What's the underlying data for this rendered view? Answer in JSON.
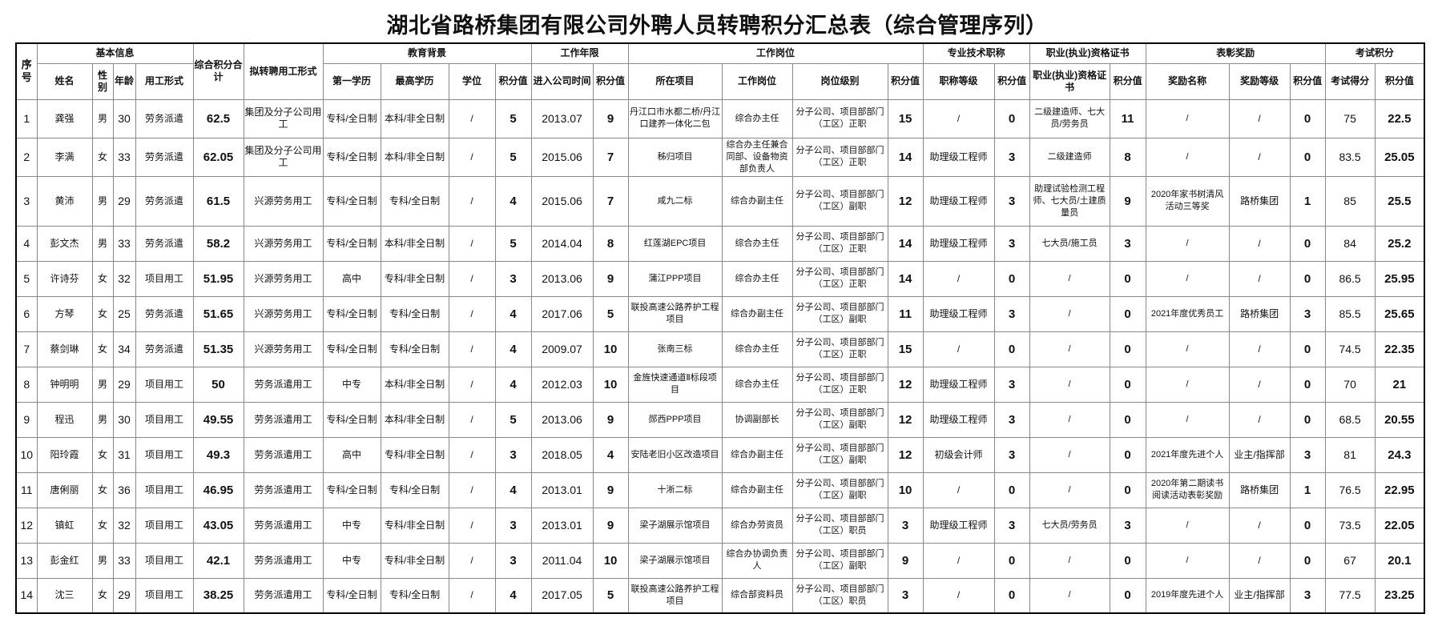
{
  "title": "湖北省路桥集团有限公司外聘人员转聘积分汇总表（综合管理序列）",
  "group_headers": {
    "seq": "序号",
    "basic": "基本信息",
    "total": "综合积分合计",
    "transfer": "拟转聘用工形式",
    "education": "教育背景",
    "years": "工作年限",
    "position": "工作岗位",
    "title_rank": "专业技术职称",
    "certificate": "职业(执业)资格证书",
    "awards": "表彰奖励",
    "exam": "考试积分"
  },
  "sub_headers": [
    "姓名",
    "性别",
    "年龄",
    "用工形式",
    "第一学历",
    "最高学历",
    "学位",
    "积分值",
    "进入公司时间",
    "积分值",
    "所在项目",
    "工作岗位",
    "岗位级别",
    "积分值",
    "职称等级",
    "积分值",
    "职业(执业)资格证书",
    "积分值",
    "奖励名称",
    "奖励等级",
    "积分值",
    "考试得分",
    "积分值"
  ],
  "rows": [
    [
      "1",
      "龚强",
      "男",
      "30",
      "劳务派遣",
      "62.5",
      "集团及分子公司用工",
      "专科/全日制",
      "本科/非全日制",
      "/",
      "5",
      "2013.07",
      "9",
      "丹江口市水都二桥/丹江口建养一体化二包",
      "综合办主任",
      "分子公司、项目部部门（工区）正职",
      "15",
      "/",
      "0",
      "二级建造师、七大员/劳务员",
      "11",
      "/",
      "/",
      "0",
      "75",
      "22.5"
    ],
    [
      "2",
      "李满",
      "女",
      "33",
      "劳务派遣",
      "62.05",
      "集团及分子公司用工",
      "专科/全日制",
      "本科/非全日制",
      "/",
      "5",
      "2015.06",
      "7",
      "秭归项目",
      "综合办主任兼合同部、设备物资部负责人",
      "分子公司、项目部部门（工区）正职",
      "14",
      "助理级工程师",
      "3",
      "二级建造师",
      "8",
      "/",
      "/",
      "0",
      "83.5",
      "25.05"
    ],
    [
      "3",
      "黄沛",
      "男",
      "29",
      "劳务派遣",
      "61.5",
      "兴源劳务用工",
      "专科/全日制",
      "专科/全日制",
      "/",
      "4",
      "2015.06",
      "7",
      "咸九二标",
      "综合办副主任",
      "分子公司、项目部部门（工区）副职",
      "12",
      "助理级工程师",
      "3",
      "助理试验检测工程师、七大员/土建质量员",
      "9",
      "2020年家书树清风活动三等奖",
      "路桥集团",
      "1",
      "85",
      "25.5"
    ],
    [
      "4",
      "彭文杰",
      "男",
      "33",
      "劳务派遣",
      "58.2",
      "兴源劳务用工",
      "专科/全日制",
      "本科/非全日制",
      "/",
      "5",
      "2014.04",
      "8",
      "红莲湖EPC项目",
      "综合办主任",
      "分子公司、项目部部门（工区）正职",
      "14",
      "助理级工程师",
      "3",
      "七大员/施工员",
      "3",
      "/",
      "/",
      "0",
      "84",
      "25.2"
    ],
    [
      "5",
      "许诗芬",
      "女",
      "32",
      "项目用工",
      "51.95",
      "兴源劳务用工",
      "高中",
      "专科/非全日制",
      "/",
      "3",
      "2013.06",
      "9",
      "蒲江PPP项目",
      "综合办主任",
      "分子公司、项目部部门（工区）正职",
      "14",
      "/",
      "0",
      "/",
      "0",
      "/",
      "/",
      "0",
      "86.5",
      "25.95"
    ],
    [
      "6",
      "方琴",
      "女",
      "25",
      "劳务派遣",
      "51.65",
      "兴源劳务用工",
      "专科/全日制",
      "专科/全日制",
      "/",
      "4",
      "2017.06",
      "5",
      "联投高速公路养护工程项目",
      "综合办副主任",
      "分子公司、项目部部门（工区）副职",
      "11",
      "助理级工程师",
      "3",
      "/",
      "0",
      "2021年度优秀员工",
      "路桥集团",
      "3",
      "85.5",
      "25.65"
    ],
    [
      "7",
      "蔡剑琳",
      "女",
      "34",
      "劳务派遣",
      "51.35",
      "兴源劳务用工",
      "专科/全日制",
      "专科/全日制",
      "/",
      "4",
      "2009.07",
      "10",
      "张南三标",
      "综合办主任",
      "分子公司、项目部部门（工区）正职",
      "15",
      "/",
      "0",
      "/",
      "0",
      "/",
      "/",
      "0",
      "74.5",
      "22.35"
    ],
    [
      "8",
      "钟明明",
      "男",
      "29",
      "项目用工",
      "50",
      "劳务派遣用工",
      "中专",
      "本科/非全日制",
      "/",
      "4",
      "2012.03",
      "10",
      "金旌快速通道Ⅱ标段项目",
      "综合办主任",
      "分子公司、项目部部门（工区）正职",
      "12",
      "助理级工程师",
      "3",
      "/",
      "0",
      "/",
      "/",
      "0",
      "70",
      "21"
    ],
    [
      "9",
      "程迅",
      "男",
      "30",
      "项目用工",
      "49.55",
      "劳务派遣用工",
      "专科/全日制",
      "本科/非全日制",
      "/",
      "5",
      "2013.06",
      "9",
      "郧西PPP项目",
      "协调副部长",
      "分子公司、项目部部门（工区）副职",
      "12",
      "助理级工程师",
      "3",
      "/",
      "0",
      "/",
      "/",
      "0",
      "68.5",
      "20.55"
    ],
    [
      "10",
      "阳玲霞",
      "女",
      "31",
      "项目用工",
      "49.3",
      "劳务派遣用工",
      "高中",
      "专科/非全日制",
      "/",
      "3",
      "2018.05",
      "4",
      "安陆老旧小区改造项目",
      "综合办副主任",
      "分子公司、项目部部门（工区）副职",
      "12",
      "初级会计师",
      "3",
      "/",
      "0",
      "2021年度先进个人",
      "业主/指挥部",
      "3",
      "81",
      "24.3"
    ],
    [
      "11",
      "唐俐丽",
      "女",
      "36",
      "项目用工",
      "46.95",
      "劳务派遣用工",
      "专科/全日制",
      "专科/全日制",
      "/",
      "4",
      "2013.01",
      "9",
      "十淅二标",
      "综合办副主任",
      "分子公司、项目部部门（工区）副职",
      "10",
      "/",
      "0",
      "/",
      "0",
      "2020年第二期读书阅读活动表彰奖励",
      "路桥集团",
      "1",
      "76.5",
      "22.95"
    ],
    [
      "12",
      "镇虹",
      "女",
      "32",
      "项目用工",
      "43.05",
      "劳务派遣用工",
      "中专",
      "专科/非全日制",
      "/",
      "3",
      "2013.01",
      "9",
      "梁子湖展示馆项目",
      "综合办劳资员",
      "分子公司、项目部部门（工区）职员",
      "3",
      "助理级工程师",
      "3",
      "七大员/劳务员",
      "3",
      "/",
      "/",
      "0",
      "73.5",
      "22.05"
    ],
    [
      "13",
      "彭金红",
      "男",
      "33",
      "项目用工",
      "42.1",
      "劳务派遣用工",
      "中专",
      "专科/非全日制",
      "/",
      "3",
      "2011.04",
      "10",
      "梁子湖展示馆项目",
      "综合办协调负责人",
      "分子公司、项目部部门（工区）副职",
      "9",
      "/",
      "0",
      "/",
      "0",
      "/",
      "/",
      "0",
      "67",
      "20.1"
    ],
    [
      "14",
      "沈三",
      "女",
      "29",
      "项目用工",
      "38.25",
      "劳务派遣用工",
      "专科/全日制",
      "专科/全日制",
      "/",
      "4",
      "2017.05",
      "5",
      "联投高速公路养护工程项目",
      "综合部资料员",
      "分子公司、项目部部门（工区）职员",
      "3",
      "/",
      "0",
      "/",
      "0",
      "2019年度先进个人",
      "业主/指挥部",
      "3",
      "77.5",
      "23.25"
    ]
  ]
}
